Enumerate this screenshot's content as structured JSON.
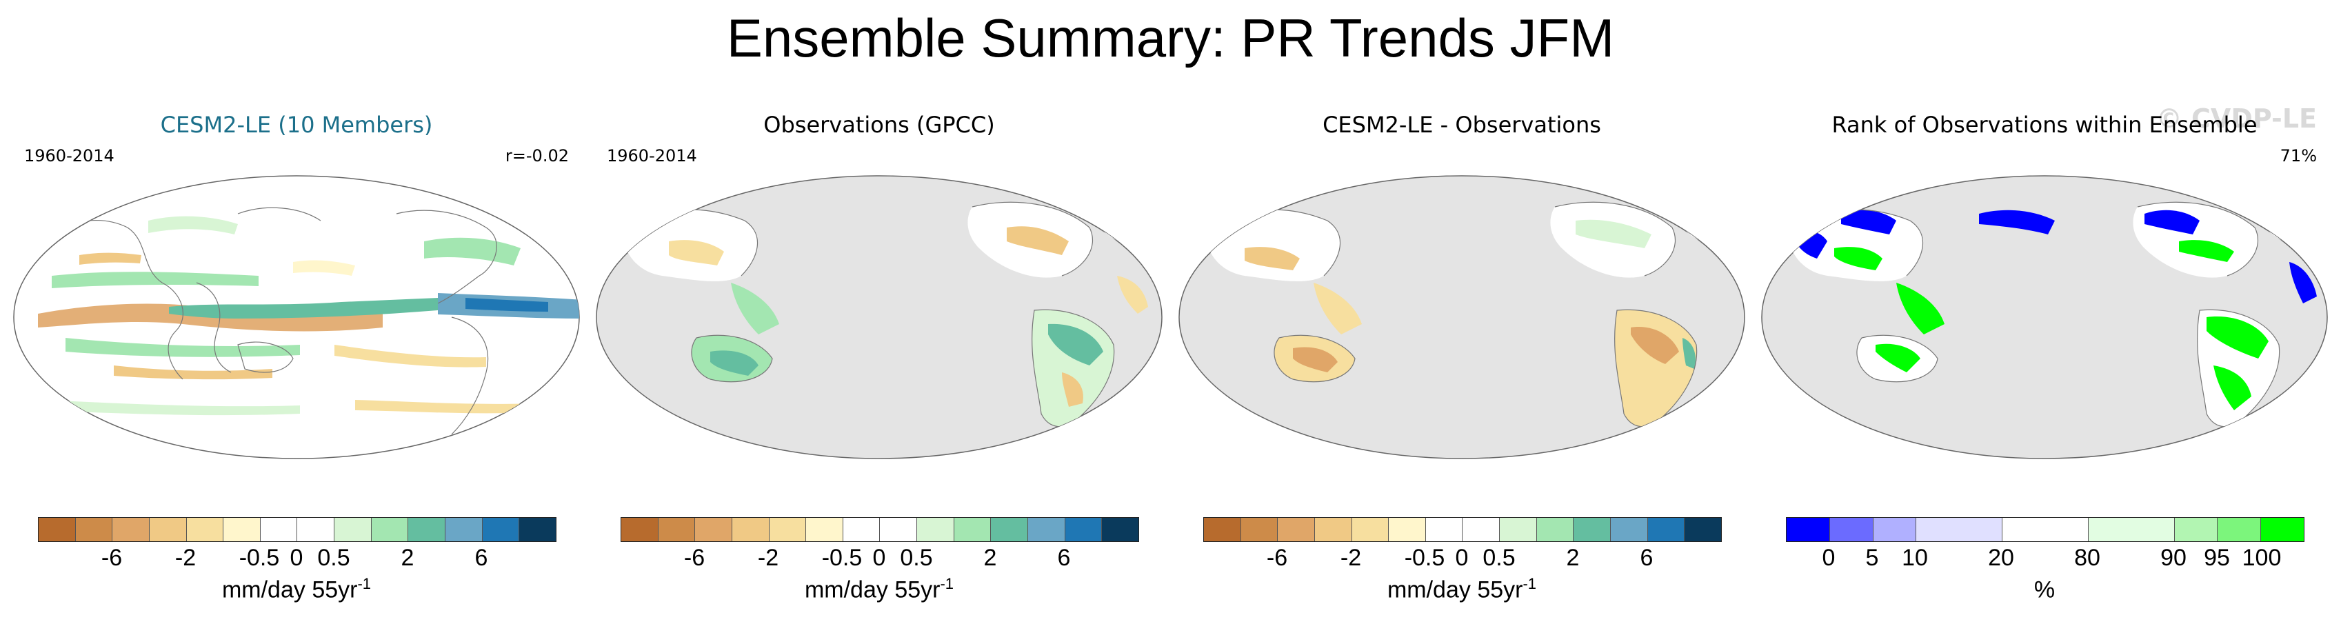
{
  "title": "Ensemble Summary: PR Trends JFM",
  "watermark": "© CVDP-LE",
  "colors": {
    "title_accent": "#1b6f8a",
    "ocean_gray": "#e4e4e4",
    "land_white": "#ffffff",
    "diverging_scale": [
      "#b76b2d",
      "#cd8b49",
      "#e0a668",
      "#f0c985",
      "#f7df9f",
      "#fff6cc",
      "#ffffff",
      "#ffffff",
      "#d8f5d4",
      "#a3e6b1",
      "#64bea0",
      "#6aa6c6",
      "#1f77b4",
      "#0a3a5c"
    ],
    "rank_scale": [
      "#0000ff",
      "#6b6bff",
      "#b0b0ff",
      "#e0e0ff",
      "#ffffff",
      "#e2fde2",
      "#b2f5b2",
      "#7cf57c",
      "#00ff00"
    ]
  },
  "panels": [
    {
      "title": "CESM2-LE (10 Members)",
      "period": "1960-2014",
      "stat": "r=-0.02",
      "projection": "robinson-centered-pacific",
      "units_base": "mm/day 55yr",
      "units_exp": "-1",
      "tick_labels": [
        "-6",
        "-2",
        "-0.5",
        "0",
        "0.5",
        "2",
        "6"
      ]
    },
    {
      "title": "Observations (GPCC)",
      "period": "1960-2014",
      "stat": "",
      "projection": "robinson-centered-pacific",
      "units_base": "mm/day 55yr",
      "units_exp": "-1",
      "tick_labels": [
        "-6",
        "-2",
        "-0.5",
        "0",
        "0.5",
        "2",
        "6"
      ]
    },
    {
      "title": "CESM2-LE - Observations",
      "period": "",
      "stat": "",
      "projection": "robinson-centered-pacific",
      "units_base": "mm/day 55yr",
      "units_exp": "-1",
      "tick_labels": [
        "-6",
        "-2",
        "-0.5",
        "0",
        "0.5",
        "2",
        "6"
      ]
    },
    {
      "title": "Rank of Observations within Ensemble",
      "period": "",
      "stat": "71%",
      "projection": "robinson-centered-pacific",
      "units_base": "%",
      "units_exp": "",
      "tick_labels": [
        "0",
        "5",
        "10",
        "20",
        "80",
        "90",
        "95",
        "100"
      ]
    }
  ]
}
